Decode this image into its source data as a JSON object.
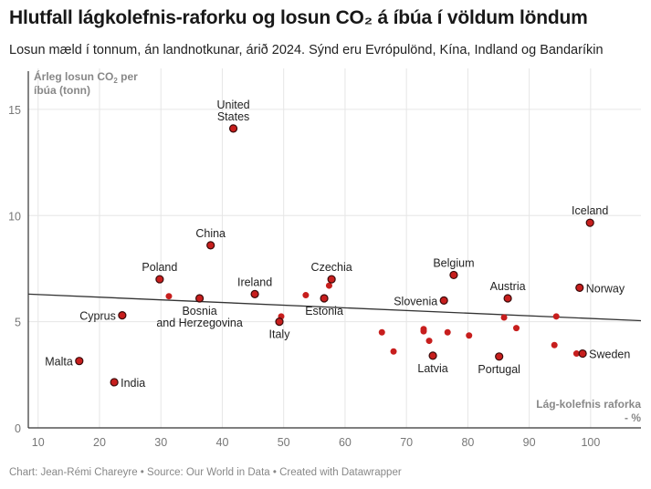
{
  "title": "Hlutfall lágkolefnis-raforku og losun CO₂ á íbúa í völdum löndum",
  "subtitle": "Losun mæld í tonnum, án landnotkunar, árið 2024. Sýnd eru Evrópulönd, Kína, Indland og Bandaríkin",
  "footer": "Chart: Jean-Rémi Chareyre • Source: Our World in Data • Created with Datawrapper",
  "colors": {
    "dot": "#c71e1d",
    "dot_stroke": "#3a0a0a",
    "line": "#333333",
    "grid": "#e6e6e6"
  },
  "chart_data": {
    "type": "scatter",
    "title": "Hlutfall lágkolefnis-raforku og losun CO₂ á íbúa í völdum löndum",
    "ylabel_line1": "Árleg losun CO₂ per",
    "ylabel_line2": "íbúa (tonn)",
    "xlabel_line1": "Lág-kolefnis raforka",
    "xlabel_line2": "- %",
    "xlim": [
      8.4,
      108.2
    ],
    "ylim": [
      0,
      16.8
    ],
    "xticks": [
      10,
      20,
      30,
      40,
      50,
      60,
      70,
      80,
      90,
      100
    ],
    "yticks": [
      0,
      5,
      10,
      15
    ],
    "grid": true,
    "trendline": {
      "x": [
        8.4,
        108.2
      ],
      "y": [
        6.3,
        5.05
      ]
    },
    "labeled_points": [
      {
        "name": "United States",
        "lines": [
          "United",
          "States"
        ],
        "x": 41.8,
        "y": 14.1,
        "pos": "top"
      },
      {
        "name": "Iceland",
        "lines": [
          "Iceland"
        ],
        "x": 99.9,
        "y": 9.66,
        "pos": "top"
      },
      {
        "name": "China",
        "lines": [
          "China"
        ],
        "x": 38.1,
        "y": 8.6,
        "pos": "top"
      },
      {
        "name": "Poland",
        "lines": [
          "Poland"
        ],
        "x": 29.8,
        "y": 7.0,
        "pos": "top"
      },
      {
        "name": "Ireland",
        "lines": [
          "Ireland"
        ],
        "x": 45.3,
        "y": 6.3,
        "pos": "top"
      },
      {
        "name": "Czechia",
        "lines": [
          "Czechia"
        ],
        "x": 57.8,
        "y": 7.0,
        "pos": "top"
      },
      {
        "name": "Belgium",
        "lines": [
          "Belgium"
        ],
        "x": 77.7,
        "y": 7.2,
        "pos": "top"
      },
      {
        "name": "Austria",
        "lines": [
          "Austria"
        ],
        "x": 86.5,
        "y": 6.1,
        "pos": "top"
      },
      {
        "name": "Norway",
        "lines": [
          "Norway"
        ],
        "x": 98.2,
        "y": 6.6,
        "pos": "right"
      },
      {
        "name": "Slovenia",
        "lines": [
          "Slovenia"
        ],
        "x": 76.1,
        "y": 6.0,
        "pos": "left"
      },
      {
        "name": "Estonia",
        "lines": [
          "Estonia"
        ],
        "x": 56.6,
        "y": 6.1,
        "pos": "bottom"
      },
      {
        "name": "Bosnia and Herzegovina",
        "lines": [
          "Bosnia",
          "and Herzegovina"
        ],
        "x": 36.3,
        "y": 6.1,
        "pos": "bottom"
      },
      {
        "name": "Cyprus",
        "lines": [
          "Cyprus"
        ],
        "x": 23.7,
        "y": 5.3,
        "pos": "left"
      },
      {
        "name": "Italy",
        "lines": [
          "Italy"
        ],
        "x": 49.3,
        "y": 5.0,
        "pos": "bottom"
      },
      {
        "name": "Malta",
        "lines": [
          "Malta"
        ],
        "x": 16.7,
        "y": 3.15,
        "pos": "left"
      },
      {
        "name": "India",
        "lines": [
          "India"
        ],
        "x": 22.4,
        "y": 2.15,
        "pos": "right"
      },
      {
        "name": "Latvia",
        "lines": [
          "Latvia"
        ],
        "x": 74.3,
        "y": 3.4,
        "pos": "bottom"
      },
      {
        "name": "Portugal",
        "lines": [
          "Portugal"
        ],
        "x": 85.1,
        "y": 3.36,
        "pos": "bottom"
      },
      {
        "name": "Sweden",
        "lines": [
          "Sweden"
        ],
        "x": 98.7,
        "y": 3.5,
        "pos": "right"
      }
    ],
    "unlabeled_points": [
      {
        "x": 31.3,
        "y": 6.2
      },
      {
        "x": 49.6,
        "y": 5.25
      },
      {
        "x": 53.6,
        "y": 6.25
      },
      {
        "x": 57.4,
        "y": 6.7
      },
      {
        "x": 66.0,
        "y": 4.5
      },
      {
        "x": 67.9,
        "y": 3.6
      },
      {
        "x": 72.8,
        "y": 4.65
      },
      {
        "x": 72.8,
        "y": 4.55
      },
      {
        "x": 73.7,
        "y": 4.1
      },
      {
        "x": 76.7,
        "y": 4.5
      },
      {
        "x": 80.2,
        "y": 4.35
      },
      {
        "x": 85.9,
        "y": 5.2
      },
      {
        "x": 87.9,
        "y": 4.7
      },
      {
        "x": 94.4,
        "y": 5.25
      },
      {
        "x": 94.1,
        "y": 3.9
      },
      {
        "x": 97.7,
        "y": 3.5
      }
    ]
  }
}
